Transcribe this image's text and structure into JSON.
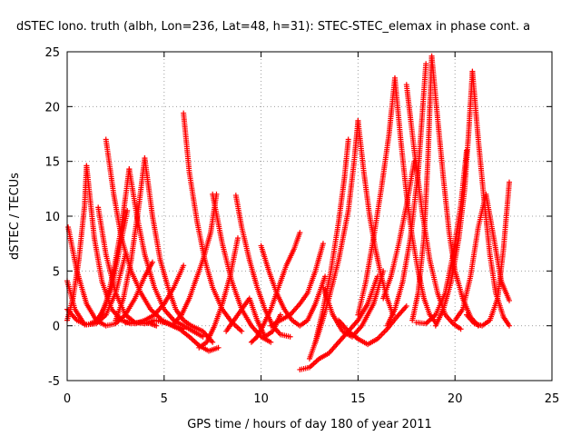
{
  "chart_data": {
    "type": "scatter",
    "title": "dSTEC Iono. truth (albh, Lon=236, Lat=48, h=31): STEC-STEC_elemax in phase cont. a",
    "xlabel": "GPS time / hours of day 180 of year 2011",
    "ylabel": "dSTEC  / TECUs",
    "xlim": [
      0,
      25
    ],
    "ylim": [
      -5,
      25
    ],
    "xticks": [
      "0",
      "5",
      "10",
      "15",
      "20",
      "25"
    ],
    "yticks": [
      "-5",
      "0",
      "5",
      "10",
      "15",
      "20",
      "25"
    ],
    "grid": true,
    "marker": "+",
    "color": "#ff0000",
    "series": [
      {
        "x": [
          0.05,
          0.5,
          1.0,
          1.5,
          2.0,
          2.5,
          3.0,
          3.5,
          4.0,
          4.4
        ],
        "y": [
          9.0,
          5.0,
          2.0,
          0.5,
          0.0,
          0.2,
          1.0,
          2.5,
          4.5,
          5.8
        ]
      },
      {
        "x": [
          0.0,
          0.4,
          0.9,
          1.4,
          1.8,
          2.3,
          2.7,
          3.1
        ],
        "y": [
          4.1,
          1.5,
          0.1,
          0.2,
          1.2,
          3.5,
          7.0,
          10.5
        ]
      },
      {
        "x": [
          0.0,
          0.3,
          0.6,
          0.9,
          1.0
        ],
        "y": [
          0.5,
          2.5,
          6.0,
          11.0,
          14.6
        ]
      },
      {
        "x": [
          1.0,
          1.4,
          1.8,
          2.3,
          2.8,
          3.3,
          3.8,
          4.3,
          4.6
        ],
        "y": [
          14.6,
          8.0,
          4.0,
          1.5,
          0.5,
          0.2,
          0.3,
          0.2,
          0.0
        ]
      },
      {
        "x": [
          0.0,
          0.5,
          1.0,
          1.5,
          2.0,
          2.5,
          3.0
        ],
        "y": [
          1.5,
          0.5,
          0.1,
          0.2,
          1.0,
          3.0,
          6.5
        ]
      },
      {
        "x": [
          1.6,
          2.0,
          2.5,
          3.0,
          3.5,
          4.0,
          4.5,
          5.0
        ],
        "y": [
          10.8,
          6.5,
          3.0,
          1.0,
          0.3,
          0.2,
          0.5,
          0.3
        ]
      },
      {
        "x": [
          2.0,
          2.4,
          2.8,
          3.3,
          3.8,
          4.3,
          4.9,
          5.5,
          6.0
        ],
        "y": [
          17.0,
          12.0,
          8.0,
          5.0,
          3.0,
          1.5,
          0.5,
          0.0,
          -0.3
        ]
      },
      {
        "x": [
          1.2,
          1.6,
          2.0,
          2.4,
          2.8,
          3.2
        ],
        "y": [
          0.2,
          0.5,
          2.0,
          5.0,
          9.0,
          14.3
        ]
      },
      {
        "x": [
          3.2,
          3.6,
          4.0,
          4.5,
          5.0,
          5.5,
          6.0,
          6.5,
          7.0
        ],
        "y": [
          14.3,
          10.0,
          6.5,
          3.5,
          1.5,
          0.5,
          0.0,
          -0.5,
          -1.0
        ]
      },
      {
        "x": [
          2.5,
          2.9,
          3.3,
          3.7,
          4.0
        ],
        "y": [
          0.5,
          2.5,
          6.0,
          11.0,
          15.3
        ]
      },
      {
        "x": [
          4.0,
          4.4,
          4.8,
          5.2,
          5.6,
          6.0,
          6.4,
          7.0,
          7.5
        ],
        "y": [
          15.3,
          10.0,
          6.0,
          3.5,
          1.5,
          0.5,
          0.0,
          -0.5,
          -1.5
        ]
      },
      {
        "x": [
          3.0,
          3.5,
          4.0,
          4.5,
          5.0,
          5.5,
          6.0
        ],
        "y": [
          0.3,
          0.2,
          0.5,
          1.0,
          2.0,
          3.5,
          5.5
        ]
      },
      {
        "x": [
          4.8,
          5.3,
          5.8,
          6.3,
          6.8,
          7.3,
          7.8
        ],
        "y": [
          0.5,
          0.1,
          -0.3,
          -1.0,
          -1.8,
          -2.3,
          -2.0
        ]
      },
      {
        "x": [
          6.0,
          6.3,
          6.7,
          7.1,
          7.5,
          8.0,
          8.5,
          9.0
        ],
        "y": [
          19.4,
          14.0,
          9.5,
          6.0,
          3.5,
          1.5,
          0.3,
          -0.5
        ]
      },
      {
        "x": [
          5.5,
          5.9,
          6.3,
          6.7,
          7.0,
          7.4,
          7.7
        ],
        "y": [
          0.2,
          1.0,
          2.5,
          4.5,
          6.0,
          8.5,
          12.0
        ]
      },
      {
        "x": [
          7.5,
          8.0,
          8.5,
          9.0,
          9.5,
          10.0,
          10.5
        ],
        "y": [
          12.0,
          7.5,
          4.0,
          1.5,
          0.0,
          -1.0,
          -1.5
        ]
      },
      {
        "x": [
          6.8,
          7.2,
          7.6,
          8.0,
          8.4,
          8.8
        ],
        "y": [
          -2.0,
          -1.5,
          0.0,
          2.0,
          4.5,
          8.0
        ]
      },
      {
        "x": [
          8.7,
          9.0,
          9.4,
          9.8,
          10.2,
          10.6,
          11.0,
          11.5
        ],
        "y": [
          11.9,
          9.0,
          6.0,
          3.5,
          1.5,
          0.0,
          -0.8,
          -1.0
        ]
      },
      {
        "x": [
          8.2,
          8.6,
          9.0,
          9.4,
          9.8,
          10.2,
          10.6,
          11.0
        ],
        "y": [
          -0.5,
          0.5,
          1.5,
          2.5,
          0.5,
          -1.0,
          -0.5,
          1.0
        ]
      },
      {
        "x": [
          9.5,
          9.8,
          10.1,
          10.5,
          10.9,
          11.3,
          11.7,
          12.0
        ],
        "y": [
          -1.5,
          -1.0,
          0.0,
          1.5,
          3.5,
          5.5,
          7.0,
          8.5
        ]
      },
      {
        "x": [
          10.0,
          10.4,
          10.8,
          11.2,
          11.6,
          12.0,
          12.4,
          12.8,
          13.3
        ],
        "y": [
          7.3,
          5.0,
          3.0,
          1.5,
          0.5,
          0.0,
          0.5,
          2.0,
          4.5
        ]
      },
      {
        "x": [
          10.5,
          11.0,
          11.5,
          12.0,
          12.4,
          12.8,
          13.2
        ],
        "y": [
          0.0,
          0.5,
          1.0,
          2.0,
          3.0,
          5.0,
          7.5
        ]
      },
      {
        "x": [
          12.0,
          12.5,
          13.0,
          13.5,
          14.0,
          14.5,
          15.0,
          15.5,
          16.0
        ],
        "y": [
          -4.0,
          -3.8,
          -3.0,
          -2.5,
          -1.5,
          -0.5,
          0.5,
          2.0,
          4.5
        ]
      },
      {
        "x": [
          12.5,
          13.0,
          13.5,
          14.0,
          14.5,
          14.8,
          15.0
        ],
        "y": [
          -3.0,
          -0.5,
          2.5,
          6.0,
          10.5,
          15.0,
          18.7
        ]
      },
      {
        "x": [
          12.8,
          13.2,
          13.6,
          14.0,
          14.3,
          14.5
        ],
        "y": [
          -1.5,
          1.5,
          5.0,
          9.5,
          13.5,
          17.0
        ]
      },
      {
        "x": [
          14.0,
          14.5,
          15.0,
          15.5,
          16.0,
          16.5,
          17.0,
          17.5
        ],
        "y": [
          0.5,
          -0.5,
          -1.2,
          -1.7,
          -1.2,
          -0.3,
          0.8,
          1.8
        ]
      },
      {
        "x": [
          13.2,
          13.7,
          14.2,
          14.7,
          15.2,
          15.8,
          16.3
        ],
        "y": [
          3.5,
          1.0,
          -0.5,
          -1.0,
          0.0,
          2.0,
          5.0
        ]
      },
      {
        "x": [
          15.0,
          15.3,
          15.6,
          15.9,
          16.2,
          16.5,
          16.8
        ],
        "y": [
          18.7,
          14.0,
          10.0,
          7.0,
          4.5,
          2.5,
          1.0
        ]
      },
      {
        "x": [
          15.0,
          15.4,
          15.8,
          16.2,
          16.6,
          16.9
        ],
        "y": [
          1.0,
          4.0,
          8.0,
          12.5,
          17.5,
          22.6
        ]
      },
      {
        "x": [
          16.9,
          17.2,
          17.5,
          17.8,
          18.1,
          18.4,
          18.7,
          19.0
        ],
        "y": [
          22.6,
          17.0,
          12.0,
          8.0,
          5.0,
          2.5,
          1.0,
          0.3
        ]
      },
      {
        "x": [
          16.3,
          16.7,
          17.1,
          17.5,
          17.9
        ],
        "y": [
          2.5,
          4.5,
          7.5,
          11.0,
          15.0
        ]
      },
      {
        "x": [
          16.5,
          16.9,
          17.3,
          17.7,
          18.1,
          18.5
        ],
        "y": [
          0.0,
          1.5,
          4.0,
          8.0,
          14.0,
          23.9
        ]
      },
      {
        "x": [
          17.5,
          17.9,
          18.3,
          18.7,
          19.1,
          19.5,
          19.9,
          20.3
        ],
        "y": [
          22.0,
          16.0,
          10.5,
          6.0,
          3.0,
          1.0,
          0.2,
          -0.3
        ]
      },
      {
        "x": [
          17.8,
          18.1,
          18.4,
          18.6,
          18.8
        ],
        "y": [
          0.5,
          3.0,
          8.0,
          15.0,
          24.6
        ]
      },
      {
        "x": [
          18.8,
          19.1,
          19.4,
          19.7,
          20.0,
          20.4,
          20.8,
          21.2
        ],
        "y": [
          24.6,
          19.0,
          13.5,
          8.5,
          5.0,
          2.5,
          0.8,
          0.0
        ]
      },
      {
        "x": [
          18.0,
          18.5,
          19.0,
          19.5,
          19.9,
          20.3,
          20.6
        ],
        "y": [
          0.3,
          0.2,
          1.0,
          3.0,
          6.5,
          11.0,
          16.0
        ]
      },
      {
        "x": [
          19.0,
          19.4,
          19.8,
          20.2,
          20.5,
          20.7,
          20.9
        ],
        "y": [
          0.0,
          1.5,
          4.0,
          8.0,
          12.5,
          17.5,
          23.2
        ]
      },
      {
        "x": [
          20.9,
          21.2,
          21.5,
          21.8,
          22.1,
          22.5,
          22.8
        ],
        "y": [
          23.2,
          17.0,
          11.5,
          6.5,
          3.0,
          0.8,
          0.0
        ]
      },
      {
        "x": [
          20.0,
          20.4,
          20.8,
          21.2,
          21.6,
          22.0,
          22.4,
          22.8
        ],
        "y": [
          0.5,
          1.5,
          4.5,
          9.0,
          12.0,
          8.0,
          4.0,
          2.3
        ]
      },
      {
        "x": [
          20.6,
          21.0,
          21.4,
          21.8,
          22.2,
          22.5,
          22.8
        ],
        "y": [
          1.0,
          0.2,
          0.0,
          0.5,
          2.5,
          7.0,
          13.1
        ]
      }
    ]
  }
}
